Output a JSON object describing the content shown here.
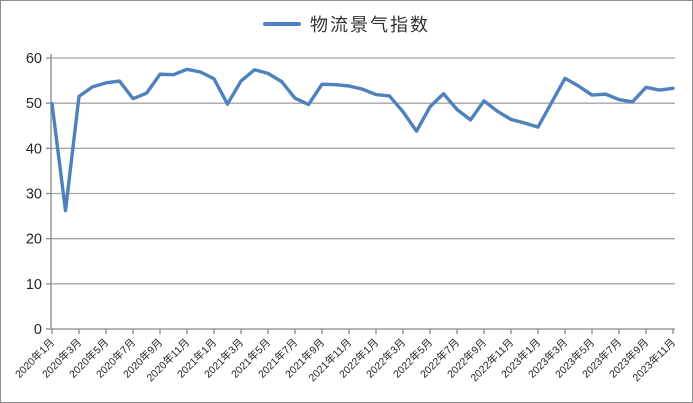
{
  "legend": {
    "label": "物流景气指数",
    "line_color": "#4f81bd"
  },
  "chart_data": {
    "type": "line",
    "title": "",
    "xlabel": "",
    "ylabel": "",
    "ylim": [
      0,
      60
    ],
    "y_ticks": [
      0,
      10,
      20,
      30,
      40,
      50,
      60
    ],
    "grid": "horizontal",
    "legend_position": "top-center",
    "line_color": "#4f81bd",
    "gridline_color": "#a6a6a6",
    "axis_color": "#898989",
    "label_color": "#262626",
    "x_tick_labels": [
      "2020年1月",
      "2020年3月",
      "2020年5月",
      "2020年7月",
      "2020年9月",
      "2020年11月",
      "2021年1月",
      "2021年3月",
      "2021年5月",
      "2021年7月",
      "2021年9月",
      "2021年11月",
      "2022年1月",
      "2022年3月",
      "2022年5月",
      "2022年7月",
      "2022年9月",
      "2022年11月",
      "2023年1月",
      "2023年3月",
      "2023年5月",
      "2023年7月",
      "2023年9月",
      "2023年11月"
    ],
    "x": [
      "2020年1月",
      "2020年2月",
      "2020年3月",
      "2020年4月",
      "2020年5月",
      "2020年6月",
      "2020年7月",
      "2020年8月",
      "2020年9月",
      "2020年10月",
      "2020年11月",
      "2020年12月",
      "2021年1月",
      "2021年2月",
      "2021年3月",
      "2021年4月",
      "2021年5月",
      "2021年6月",
      "2021年7月",
      "2021年8月",
      "2021年9月",
      "2021年10月",
      "2021年11月",
      "2021年12月",
      "2022年1月",
      "2022年2月",
      "2022年3月",
      "2022年4月",
      "2022年5月",
      "2022年6月",
      "2022年7月",
      "2022年8月",
      "2022年9月",
      "2022年10月",
      "2022年11月",
      "2022年12月",
      "2023年1月",
      "2023年2月",
      "2023年3月",
      "2023年4月",
      "2023年5月",
      "2023年6月",
      "2023年7月",
      "2023年8月",
      "2023年9月",
      "2023年10月",
      "2023年11月"
    ],
    "series": [
      {
        "name": "物流景气指数",
        "values": [
          49.9,
          26.2,
          51.5,
          53.6,
          54.5,
          54.9,
          51.0,
          52.2,
          56.4,
          56.3,
          57.5,
          56.9,
          55.4,
          49.8,
          54.9,
          57.4,
          56.6,
          54.8,
          51.1,
          49.7,
          54.2,
          54.1,
          53.8,
          53.1,
          51.9,
          51.6,
          48.1,
          43.8,
          49.2,
          52.1,
          48.6,
          46.3,
          50.5,
          48.2,
          46.4,
          45.6,
          44.7,
          50.1,
          55.5,
          53.8,
          51.8,
          52.0,
          50.8,
          50.3,
          53.5,
          52.9,
          53.3
        ]
      }
    ]
  }
}
